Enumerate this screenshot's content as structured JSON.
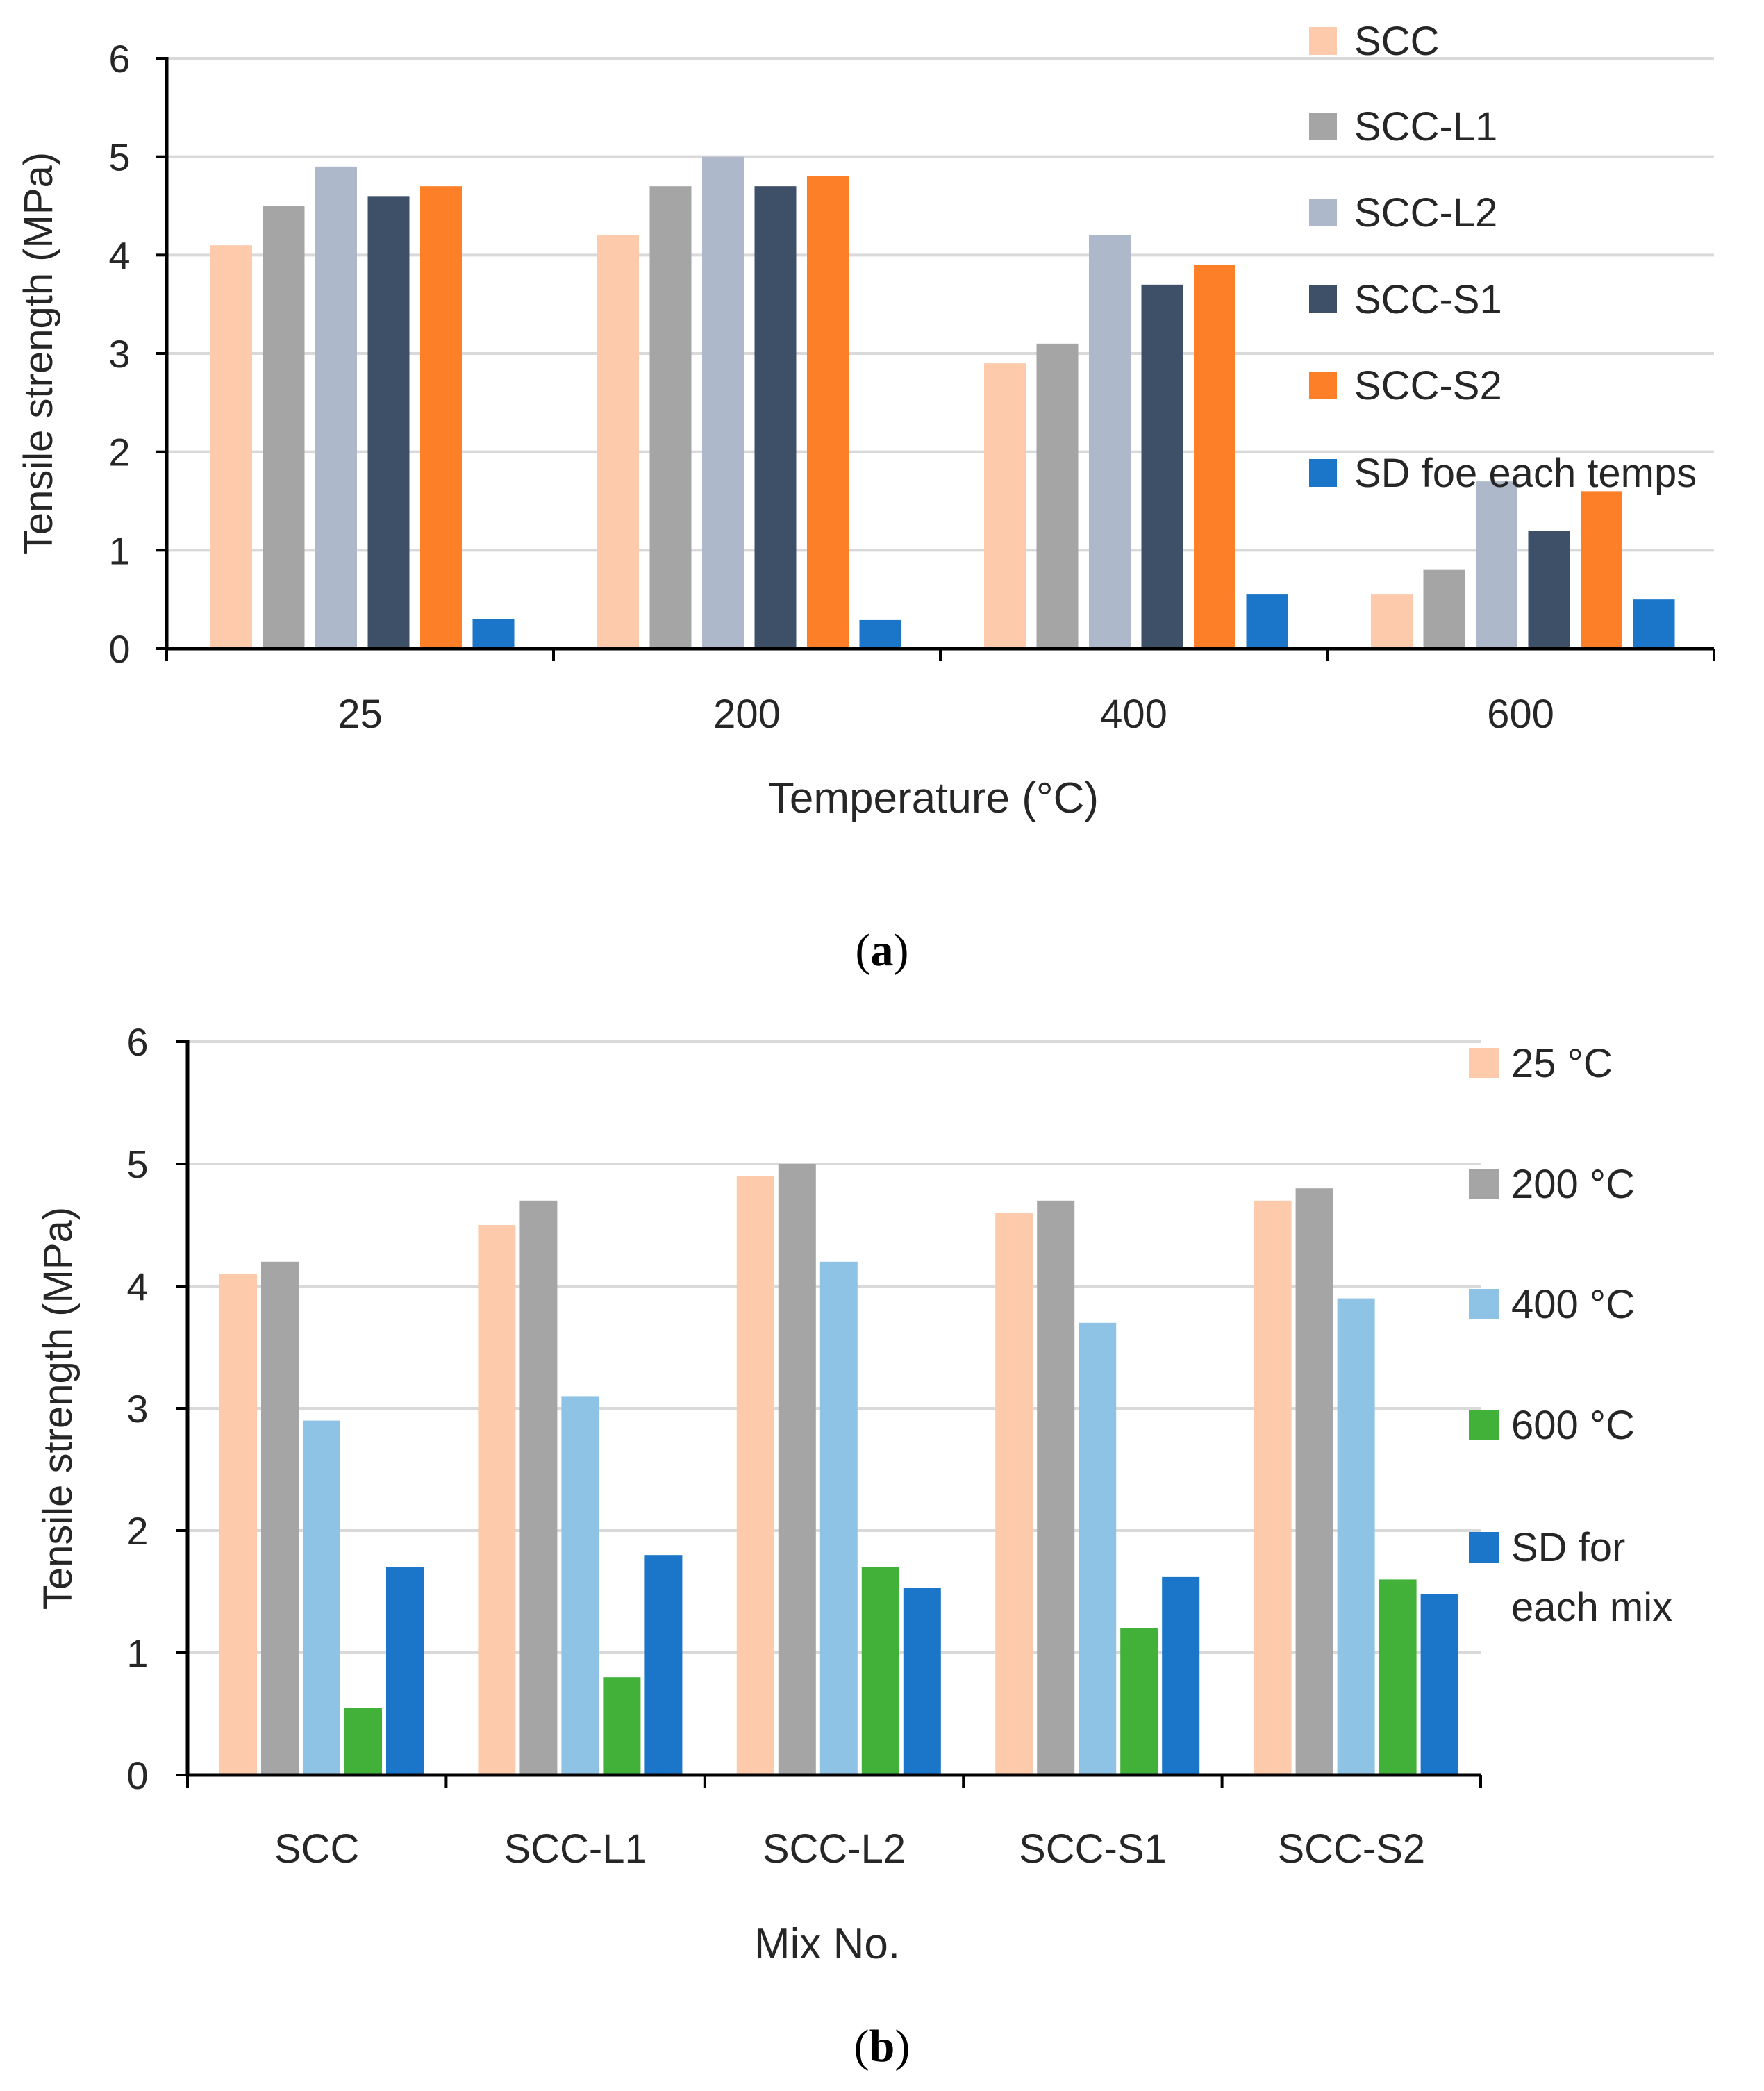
{
  "chart_data": [
    {
      "type": "bar",
      "panel_label": "a",
      "categories": [
        "25",
        "200",
        "400",
        "600"
      ],
      "series": [
        {
          "name": "SCC",
          "values": [
            4.1,
            4.2,
            2.9,
            0.55
          ],
          "color": "#fdcbac"
        },
        {
          "name": "SCC-L1",
          "values": [
            4.5,
            4.7,
            3.1,
            0.8
          ],
          "color": "#a5a5a5"
        },
        {
          "name": "SCC-L2",
          "values": [
            4.9,
            5.0,
            4.2,
            1.7
          ],
          "color": "#adb9ca"
        },
        {
          "name": "SCC-S1",
          "values": [
            4.6,
            4.7,
            3.7,
            1.2
          ],
          "color": "#3e5068"
        },
        {
          "name": "SCC-S2",
          "values": [
            4.7,
            4.8,
            3.9,
            1.6
          ],
          "color": "#fd7f28"
        },
        {
          "name": "SD foe each temps",
          "values": [
            0.3,
            0.29,
            0.55,
            0.5
          ],
          "color": "#1b75c9"
        }
      ],
      "xlabel": "Temperature (°C)",
      "ylabel": "Tensile strength (MPa)",
      "ylim": [
        0,
        6
      ],
      "yticks": [
        "0",
        "1",
        "2",
        "3",
        "4",
        "5",
        "6"
      ],
      "grid": true,
      "legend": "top-right"
    },
    {
      "type": "bar",
      "panel_label": "b",
      "categories": [
        "SCC",
        "SCC-L1",
        "SCC-L2",
        "SCC-S1",
        "SCC-S2"
      ],
      "series": [
        {
          "name": "25 °C",
          "values": [
            4.1,
            4.5,
            4.9,
            4.6,
            4.7
          ],
          "color": "#fdcbac"
        },
        {
          "name": "200  °C",
          "values": [
            4.2,
            4.7,
            5.0,
            4.7,
            4.8
          ],
          "color": "#a5a5a5"
        },
        {
          "name": "400 °C",
          "values": [
            2.9,
            3.1,
            4.2,
            3.7,
            3.9
          ],
          "color": "#8ec3e6"
        },
        {
          "name": "600 °C",
          "values": [
            0.55,
            0.8,
            1.7,
            1.2,
            1.6
          ],
          "color": "#41b139"
        },
        {
          "name": "SD for\neach mix",
          "values": [
            1.7,
            1.8,
            1.53,
            1.62,
            1.48
          ],
          "color": "#1b75c9"
        }
      ],
      "xlabel": "Mix No.",
      "ylabel": "Tensile strength (MPa)",
      "ylim": [
        0,
        6
      ],
      "yticks": [
        "0",
        "1",
        "2",
        "3",
        "4",
        "5",
        "6"
      ],
      "grid": true,
      "legend": "right"
    }
  ]
}
